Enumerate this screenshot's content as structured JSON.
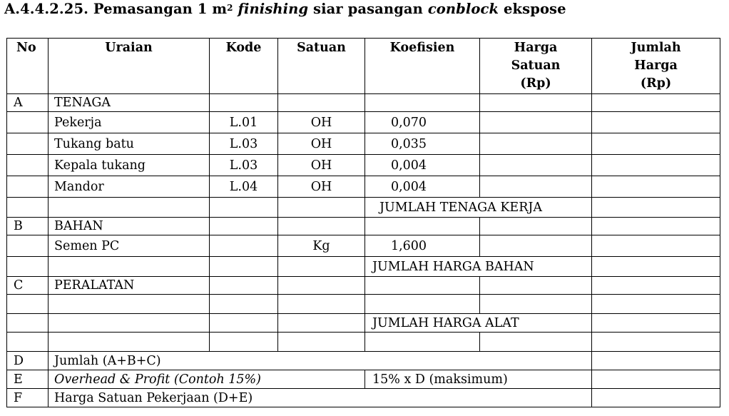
{
  "title": {
    "code": "A.4.4.2.25.",
    "part1": " Pemasangan 1 m",
    "sup": "2",
    "part2": " ",
    "italic1": "finishing",
    "part3": " siar pasangan ",
    "italic2": "conblock",
    "part4": " ekspose"
  },
  "headers": {
    "no": "No",
    "uraian": "Uraian",
    "kode": "Kode",
    "satuan": "Satuan",
    "koefisien": "Koefisien",
    "harga_satuan": "Harga Satuan (Rp)",
    "jumlah_harga": "Jumlah Harga (Rp)"
  },
  "sections": {
    "a": {
      "no": "A",
      "label": "TENAGA"
    },
    "b": {
      "no": "B",
      "label": "BAHAN"
    },
    "c": {
      "no": "C",
      "label": "PERALATAN"
    }
  },
  "tenaga": [
    {
      "uraian": "Pekerja",
      "kode": "L.01",
      "satuan": "OH",
      "koefisien": "0,070"
    },
    {
      "uraian": "Tukang batu",
      "kode": "L.03",
      "satuan": "OH",
      "koefisien": "0,035"
    },
    {
      "uraian": "Kepala tukang",
      "kode": "L.03",
      "satuan": "OH",
      "koefisien": "0,004"
    },
    {
      "uraian": "Mandor",
      "kode": "L.04",
      "satuan": "OH",
      "koefisien": "0,004"
    }
  ],
  "bahan": [
    {
      "uraian": "Semen PC",
      "kode": "",
      "satuan": "Kg",
      "koefisien": "1,600"
    }
  ],
  "totals": {
    "tenaga": "JUMLAH TENAGA KERJA",
    "bahan": "JUMLAH HARGA BAHAN",
    "alat": "JUMLAH HARGA ALAT"
  },
  "summary": {
    "d": {
      "no": "D",
      "label": "Jumlah (A+B+C)"
    },
    "e": {
      "no": "E",
      "label": "Overhead & Profit (Contoh 15%)",
      "note": "15% x D (maksimum)"
    },
    "f": {
      "no": "F",
      "label": "Harga Satuan Pekerjaan (D+E)"
    }
  }
}
